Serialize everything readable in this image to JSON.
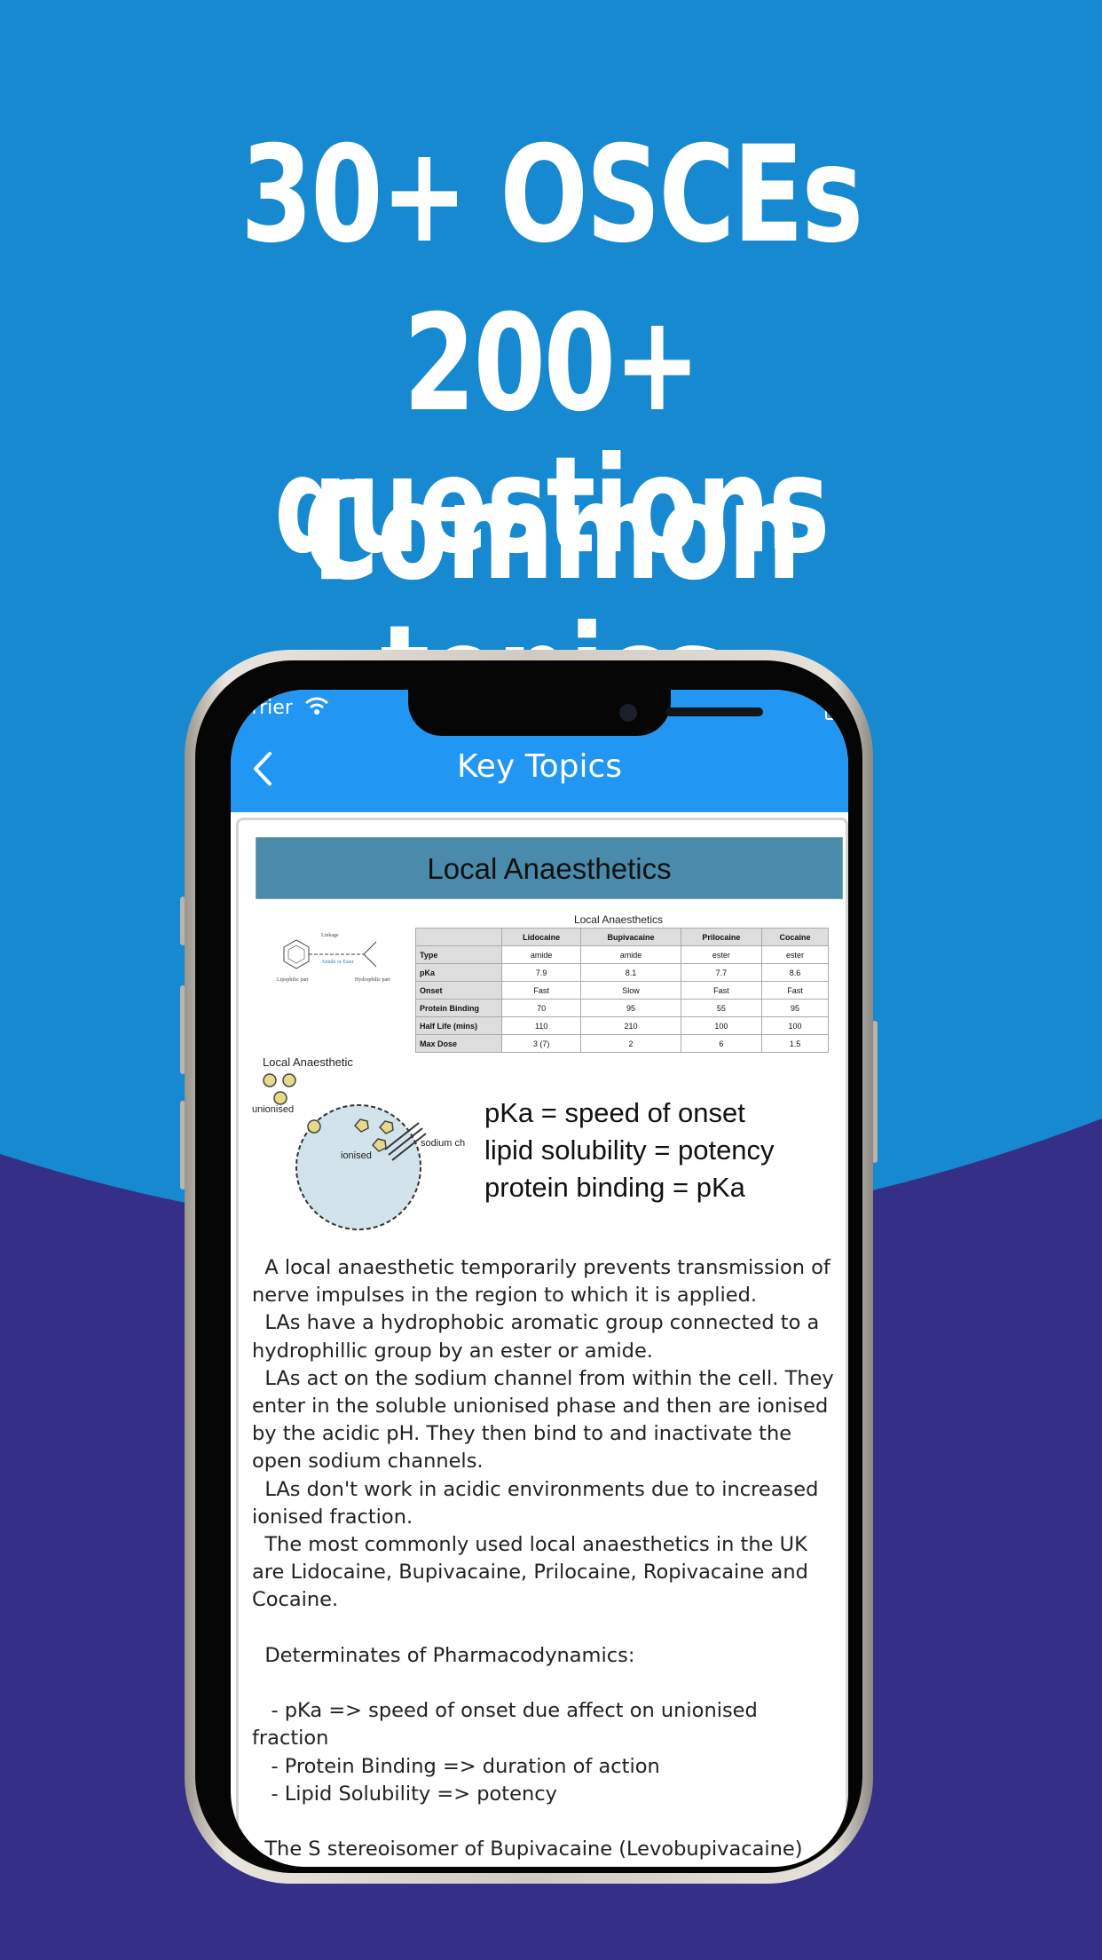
{
  "headline": {
    "line1": "30+ OSCEs",
    "line2": "200+ questions",
    "line3": "Common topics"
  },
  "colors": {
    "background_top": "#1689d0",
    "background_bottom": "#362f87",
    "navbar": "#2196f3",
    "section_header": "#4a8aaa"
  },
  "status_bar": {
    "carrier": "arrier",
    "wifi_icon": "wifi-icon",
    "battery_icon": "battery-icon"
  },
  "navbar": {
    "back_icon": "chevron-left-icon",
    "title": "Key Topics"
  },
  "article": {
    "header": "Local Anaesthetics",
    "table": {
      "caption": "Local Anaesthetics",
      "columns": [
        "",
        "Lidocaine",
        "Bupivacaine",
        "Prilocaine",
        "Cocaine"
      ],
      "rows": [
        [
          "Type",
          "amide",
          "amide",
          "ester",
          "ester"
        ],
        [
          "pKa",
          "7.9",
          "8.1",
          "7.7",
          "8.6"
        ],
        [
          "Onset",
          "Fast",
          "Slow",
          "Fast",
          "Fast"
        ],
        [
          "Protein Binding",
          "70",
          "95",
          "55",
          "95"
        ],
        [
          "Half Life (mins)",
          "110",
          "210",
          "100",
          "100"
        ],
        [
          "Max Dose",
          "3 (7)",
          "2",
          "6",
          "1.5"
        ]
      ]
    },
    "molecule": {
      "linkage": "Linkage",
      "amide_or_ester": "Amide or Ester",
      "lipophilic": "Lipophilic part",
      "hydrophilic": "Hydrophilic part"
    },
    "diagram": {
      "title": "Local Anaesthetic",
      "unionised": "unionised",
      "ionised": "ionised",
      "sodium_channel": "sodium channel"
    },
    "facts": [
      "pKa = speed of onset",
      "lipid solubility = potency",
      "protein binding = pKa"
    ],
    "body": "  A local anaesthetic temporarily prevents transmission of nerve impulses in the region to which it is applied.\n  LAs have a hydrophobic aromatic group connected to a hydrophillic group by an ester or amide.\n  LAs act on the sodium channel from within the cell. They enter in the soluble unionised phase and then are ionised by the acidic pH. They then bind to and inactivate the open sodium channels.\n  LAs don't work in acidic environments due to increased ionised fraction.\n  The most commonly used local anaesthetics in the UK are Lidocaine, Bupivacaine, Prilocaine, Ropivacaine and Cocaine.\n\n  Determinates of Pharmacodynamics:\n\n   - pKa => speed of onset due affect on unionised fraction\n   - Protein Binding => duration of action\n   - Lipid Solubility => potency\n\n  The S stereoisomer of Bupivacaine (Levobupivacaine) has a theoretically reduced side effect profile."
  }
}
